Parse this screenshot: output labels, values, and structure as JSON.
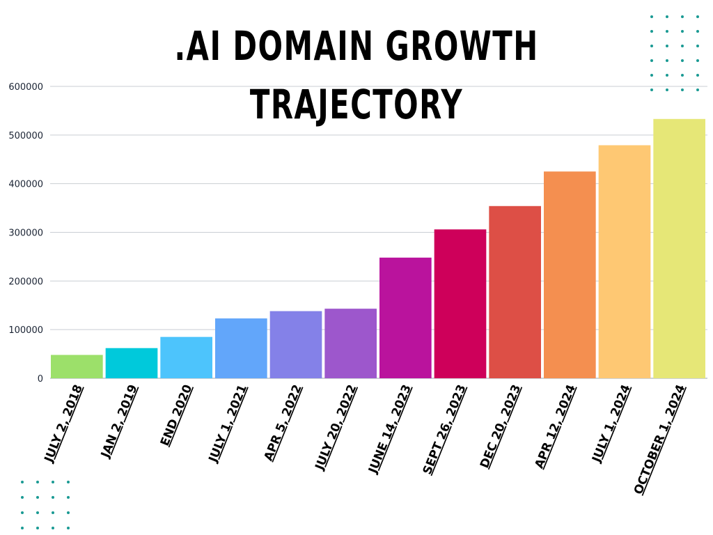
{
  "chart_data": {
    "type": "bar",
    "title": ".AI DOMAIN GROWTH TRAJECTORY",
    "xlabel": "",
    "ylabel": "",
    "ylim": [
      0,
      600000
    ],
    "yticks": [
      0,
      100000,
      200000,
      300000,
      400000,
      500000,
      600000
    ],
    "grid": true,
    "legend": "none",
    "categories": [
      "JULY 2, 2018",
      "JAN 2, 2019",
      "END 2020",
      "JULY 1, 2021",
      "APR 5, 2022",
      "JULY 20, 2022",
      "JUNE 14, 2023",
      "SEPT 26, 2023",
      "DEC 20, 2023",
      "APR 12, 2024",
      "JULY 1, 2024",
      "OCTOBER 1, 2024"
    ],
    "values": [
      48000,
      62000,
      85000,
      123000,
      138000,
      143000,
      248000,
      306000,
      354000,
      425000,
      479000,
      533000
    ],
    "colors": [
      "#9ce06a",
      "#00c9db",
      "#4dc4fc",
      "#62a6fa",
      "#8481e8",
      "#9d57cc",
      "#ba139d",
      "#ce005a",
      "#dd4f46",
      "#f48f50",
      "#fec873",
      "#e6e777"
    ]
  },
  "decor": {
    "dot_color": "#1a9a93"
  }
}
